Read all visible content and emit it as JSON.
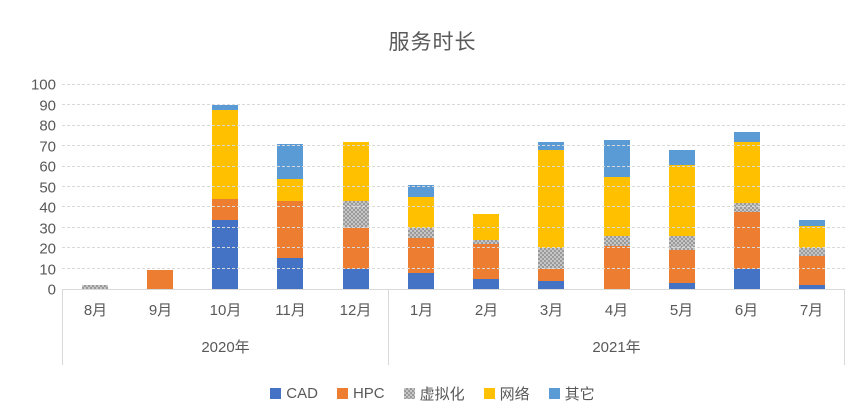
{
  "chart_data": {
    "type": "bar",
    "stacked": true,
    "title": "服务时长",
    "categories": [
      "8月",
      "9月",
      "10月",
      "11月",
      "12月",
      "1月",
      "2月",
      "3月",
      "4月",
      "5月",
      "6月",
      "7月"
    ],
    "year_groups": [
      {
        "label": "2020年",
        "span": 5
      },
      {
        "label": "2021年",
        "span": 7
      }
    ],
    "series": [
      {
        "name": "CAD",
        "color": "#4472C4",
        "values": [
          0,
          0,
          34,
          15,
          10,
          8,
          5,
          4,
          0,
          3,
          10,
          2
        ]
      },
      {
        "name": "HPC",
        "color": "#ED7D31",
        "values": [
          0,
          9.5,
          10,
          28,
          20,
          17,
          17,
          6,
          21,
          16,
          28,
          14
        ]
      },
      {
        "name": "虚拟化",
        "color": "#A5A5A5",
        "pattern": "checker",
        "values": [
          2,
          0,
          0,
          0,
          13,
          5,
          2,
          10,
          5,
          7,
          4,
          4
        ]
      },
      {
        "name": "网络",
        "color": "#FFC000",
        "values": [
          0,
          0,
          44,
          11,
          29,
          15,
          13,
          48,
          29,
          35,
          30,
          11
        ]
      },
      {
        "name": "其它",
        "color": "#5B9BD5",
        "values": [
          0,
          0,
          2,
          17,
          0,
          6,
          0,
          4,
          18,
          7,
          5,
          3
        ]
      }
    ],
    "ylim": [
      0,
      100
    ],
    "yticks": [
      0,
      10,
      20,
      30,
      40,
      50,
      60,
      70,
      80,
      90,
      100
    ],
    "grid": true,
    "legend_position": "bottom"
  },
  "colors": {
    "title_text": "#595959",
    "axis_text": "#595959",
    "gridline": "#d9d9d9"
  }
}
